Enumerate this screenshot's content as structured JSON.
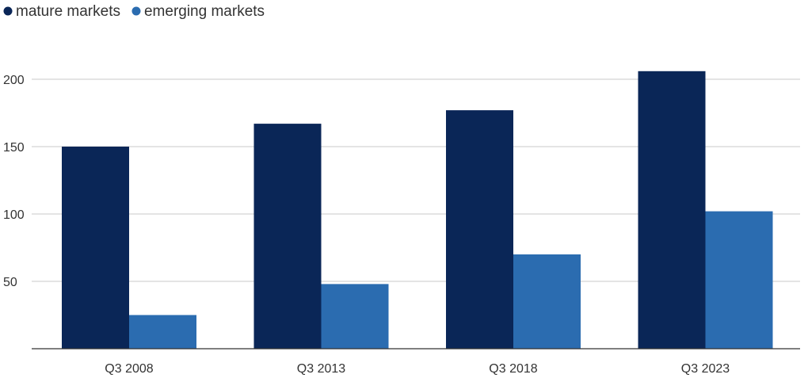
{
  "chart_data": {
    "type": "bar",
    "title": "",
    "xlabel": "",
    "ylabel": "",
    "categories": [
      "Q3 2008",
      "Q3 2013",
      "Q3 2018",
      "Q3 2023"
    ],
    "series": [
      {
        "name": "mature markets",
        "values": [
          150,
          167,
          177,
          206
        ],
        "color": "#0a2657"
      },
      {
        "name": "emerging markets",
        "values": [
          25,
          48,
          70,
          102
        ],
        "color": "#2b6cb0"
      }
    ],
    "ylim": [
      0,
      220
    ],
    "yticks": [
      50,
      100,
      150,
      200
    ],
    "grid": true,
    "legend_position": "top-left"
  }
}
